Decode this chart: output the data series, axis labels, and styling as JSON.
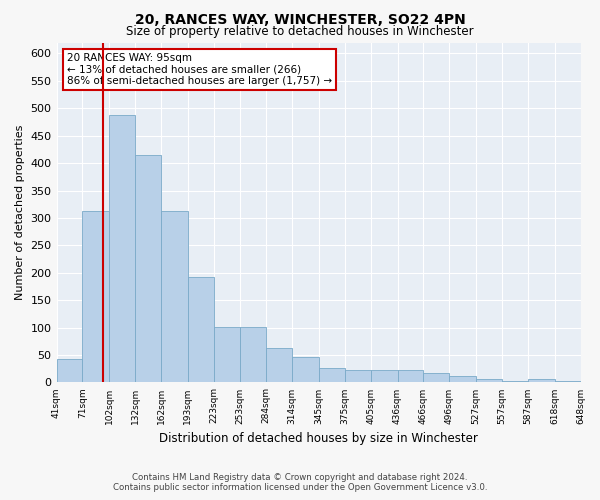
{
  "title": "20, RANCES WAY, WINCHESTER, SO22 4PN",
  "subtitle": "Size of property relative to detached houses in Winchester",
  "xlabel": "Distribution of detached houses by size in Winchester",
  "ylabel": "Number of detached properties",
  "footer_line1": "Contains HM Land Registry data © Crown copyright and database right 2024.",
  "footer_line2": "Contains public sector information licensed under the Open Government Licence v3.0.",
  "annotation_title": "20 RANCES WAY: 95sqm",
  "annotation_line1": "← 13% of detached houses are smaller (266)",
  "annotation_line2": "86% of semi-detached houses are larger (1,757) →",
  "property_size_sqm": 95,
  "bar_left_edges": [
    41,
    71,
    102,
    132,
    162,
    193,
    223,
    253,
    284,
    314,
    345,
    375,
    405,
    436,
    466,
    496,
    527,
    557,
    587,
    618
  ],
  "bar_widths": [
    30,
    31,
    30,
    30,
    31,
    30,
    30,
    31,
    30,
    31,
    30,
    30,
    31,
    30,
    30,
    31,
    30,
    30,
    31,
    30
  ],
  "bar_heights": [
    42,
    312,
    487,
    415,
    312,
    192,
    102,
    102,
    62,
    47,
    27,
    22,
    22,
    22,
    17,
    12,
    7,
    2,
    7,
    2
  ],
  "bar_color": "#b8d0e8",
  "bar_edge_color": "#7aaac8",
  "vline_x": 95,
  "vline_color": "#cc0000",
  "ylim": [
    0,
    620
  ],
  "yticks": [
    0,
    50,
    100,
    150,
    200,
    250,
    300,
    350,
    400,
    450,
    500,
    550,
    600
  ],
  "tick_labels": [
    "41sqm",
    "71sqm",
    "102sqm",
    "132sqm",
    "162sqm",
    "193sqm",
    "223sqm",
    "253sqm",
    "284sqm",
    "314sqm",
    "345sqm",
    "375sqm",
    "405sqm",
    "436sqm",
    "466sqm",
    "496sqm",
    "527sqm",
    "557sqm",
    "587sqm",
    "618sqm",
    "648sqm"
  ],
  "background_color": "#f7f7f7",
  "plot_bg_color": "#e8eef5",
  "grid_color": "#ffffff"
}
